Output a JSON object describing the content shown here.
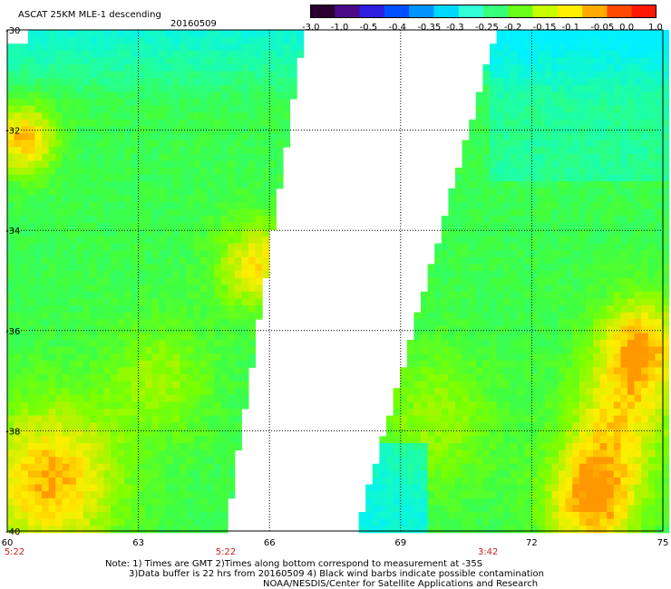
{
  "header": {
    "title": "ASCAT 25KM MLE-1 descending",
    "date": "20160509"
  },
  "colorbar": {
    "tick_labels": [
      "-3.0",
      "-1.0",
      "-0.5",
      "-0.4",
      "-0.35",
      "-0.3",
      "-0.25",
      "-0.2",
      "-0.15",
      "-0.1",
      "-0.05",
      "0.0",
      "1.0"
    ],
    "colors": [
      "#2a0030",
      "#4a0a8a",
      "#2e1ee0",
      "#0050ff",
      "#0094ff",
      "#00d8ff",
      "#30ffd8",
      "#38ff7a",
      "#6aff18",
      "#c8ff00",
      "#ffee00",
      "#ffaa00",
      "#ff4a00",
      "#ff1800"
    ]
  },
  "axes": {
    "x_ticks": [
      60,
      63,
      66,
      69,
      72,
      75
    ],
    "y_ticks": [
      -30,
      -32,
      -34,
      -36,
      -38,
      -40
    ],
    "x_tick_labels": [
      "60",
      "63",
      "66",
      "69",
      "72",
      "75"
    ],
    "y_tick_labels": [
      "-30",
      "-32",
      "-34",
      "-36",
      "-38",
      "-40"
    ],
    "x_range": [
      60,
      75
    ],
    "y_range": [
      -40,
      -30
    ],
    "grid": true
  },
  "swath_times": [
    "5:22",
    "5:22",
    "3:42"
  ],
  "swath_time_longitudes": [
    60,
    65,
    71
  ],
  "swaths": [
    {
      "name": "west",
      "edge_lon_top": 66.8,
      "edge_lon_bottom": 65.0
    },
    {
      "name": "east",
      "edge_lon_top": 71.2,
      "edge_lon_bottom": 68.0
    }
  ],
  "notes": {
    "line1": "Note: 1) Times are GMT 2)Times along bottom correspond to measurement at -35S",
    "line2": "3)Data buffer is 22 hrs from 20160509 4) Black wind barbs indicate possible contamination",
    "line3": "NOAA/NESDIS/Center for Satellite Applications and Research"
  }
}
